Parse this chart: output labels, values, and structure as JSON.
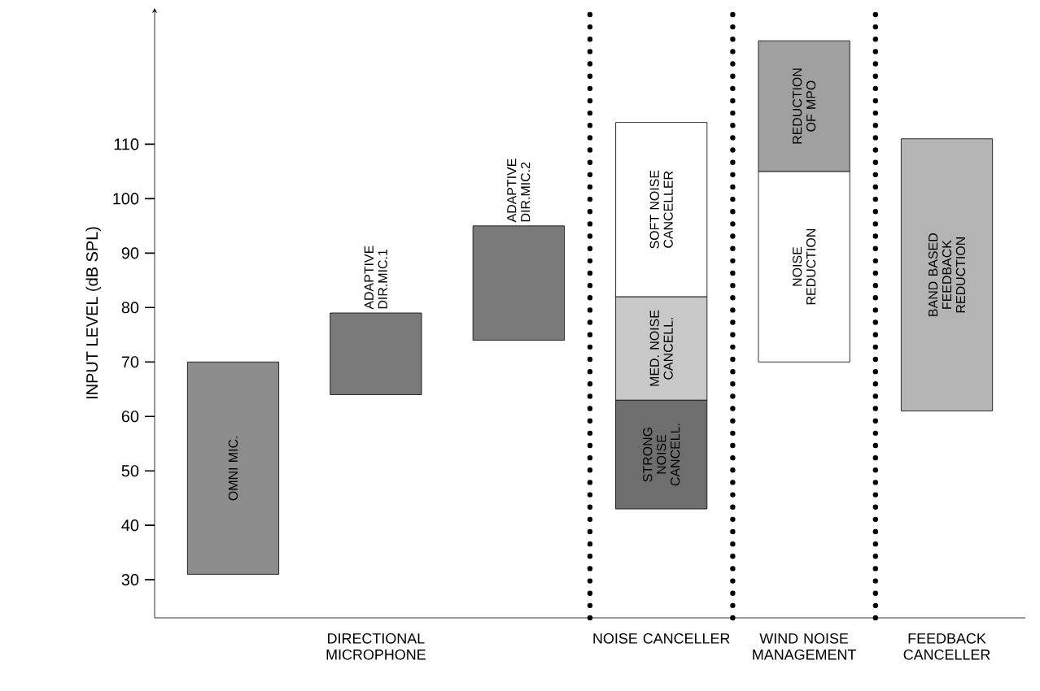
{
  "chart_data": {
    "type": "bar",
    "ylabel": "INPUT LEVEL (dB SPL)",
    "categories": [
      null,
      "DIRECTIONAL MICROPHONE",
      null,
      "NOISE CANCELLER",
      "WIND NOISE MANAGEMENT",
      "FEEDBACK CANCELLER"
    ],
    "ylim": [
      23,
      135
    ],
    "yticks": [
      30,
      40,
      50,
      60,
      70,
      80,
      90,
      100,
      110
    ],
    "series": [
      {
        "name": "OMNI MIC.",
        "color": "#8c8c8c",
        "values": [
          39,
          null,
          null,
          null,
          null,
          null
        ],
        "base": [
          31,
          null,
          null,
          null,
          null,
          null
        ]
      },
      {
        "name": "ADAPTIVE DIR.MIC.1",
        "color": "#7a7a7a",
        "values": [
          null,
          15,
          null,
          null,
          null,
          null
        ],
        "base": [
          null,
          64,
          null,
          null,
          null,
          null
        ]
      },
      {
        "name": "ADAPTIVE DIR.MIC.2",
        "color": "#7a7a7a",
        "values": [
          null,
          null,
          21,
          null,
          null,
          null
        ],
        "base": [
          null,
          null,
          74,
          null,
          null,
          null
        ]
      },
      {
        "name": "STRONG NOISE CANCELL.",
        "color": "#6e6e6e",
        "values": [
          null,
          null,
          null,
          20,
          null,
          null
        ],
        "base": [
          null,
          null,
          null,
          43,
          null,
          null
        ]
      },
      {
        "name": "MED. NOISE CANCELL.",
        "color": "#c8c8c8",
        "values": [
          null,
          null,
          null,
          19,
          null,
          null
        ],
        "base": [
          null,
          null,
          null,
          63,
          null,
          null
        ]
      },
      {
        "name": "SOFT NOISE CANCELLER",
        "color": "#ffffff",
        "values": [
          null,
          null,
          null,
          32,
          null,
          null
        ],
        "base": [
          null,
          null,
          null,
          82,
          null,
          null
        ]
      },
      {
        "name": "NOISE REDUCTION",
        "color": "#ffffff",
        "values": [
          null,
          null,
          null,
          null,
          35,
          null
        ],
        "base": [
          null,
          null,
          null,
          null,
          70,
          null
        ]
      },
      {
        "name": "REDUCTION OF MPO",
        "color": "#a0a0a0",
        "values": [
          null,
          null,
          null,
          null,
          24,
          null
        ],
        "base": [
          null,
          null,
          null,
          null,
          105,
          null
        ]
      },
      {
        "name": "BAND BASED FEEDBACK REDUCTION",
        "color": "#b4b4b4",
        "values": [
          null,
          null,
          null,
          null,
          null,
          50
        ],
        "base": [
          null,
          null,
          null,
          null,
          null,
          61
        ]
      }
    ]
  }
}
